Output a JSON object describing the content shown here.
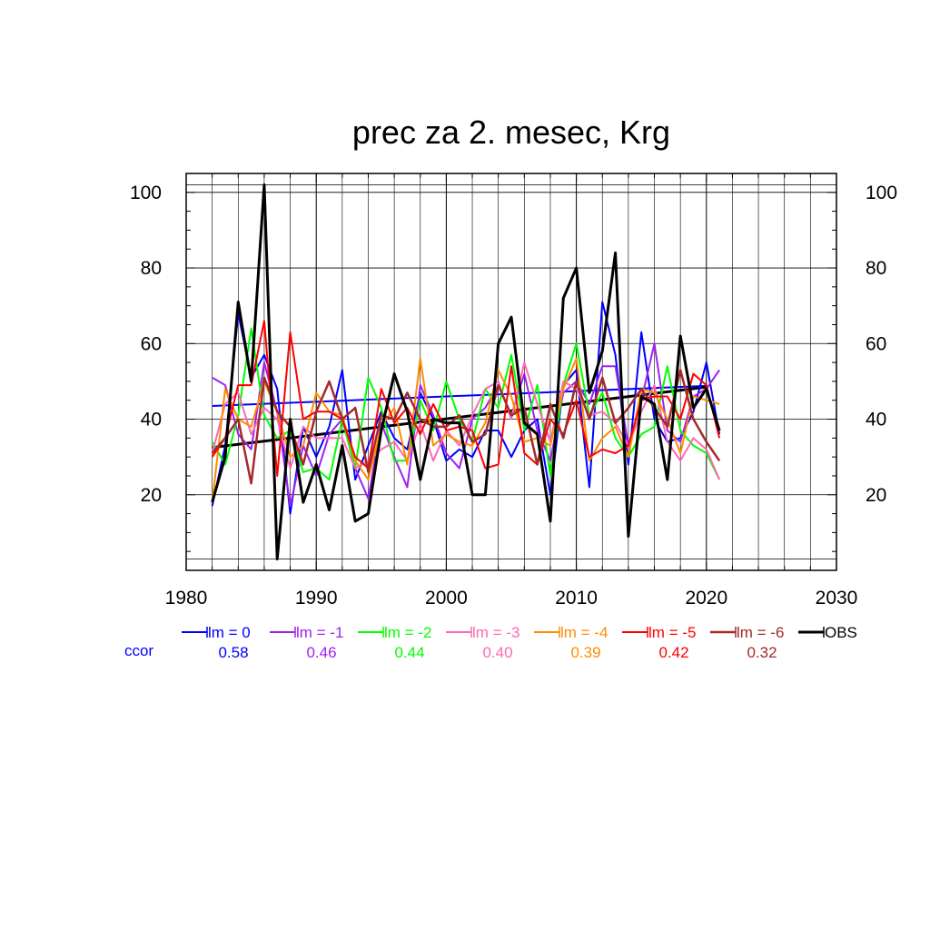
{
  "chart_data": {
    "type": "line",
    "title": "prec za 2. mesec, Krg",
    "xlim": [
      1980,
      2030
    ],
    "ylim": [
      0,
      105
    ],
    "x_ticks": [
      1980,
      1990,
      2000,
      2010,
      2020,
      2030
    ],
    "y_ticks": [
      20,
      40,
      60,
      80,
      100
    ],
    "grid": true,
    "legend_position": "bottom",
    "ccor_label": "ccor",
    "years": [
      1982,
      1983,
      1984,
      1985,
      1986,
      1987,
      1988,
      1989,
      1990,
      1991,
      1992,
      1993,
      1994,
      1995,
      1996,
      1997,
      1998,
      1999,
      2000,
      2001,
      2002,
      2003,
      2004,
      2005,
      2006,
      2007,
      2008,
      2009,
      2010,
      2011,
      2012,
      2013,
      2014,
      2015,
      2016,
      2017,
      2018,
      2019,
      2020,
      2021
    ],
    "series": [
      {
        "name": "lm = 0",
        "ccor": "0.58",
        "color": "#0000ff",
        "width": 2,
        "values": [
          17,
          33,
          68,
          51,
          57,
          48,
          15,
          38,
          30,
          38,
          53,
          24,
          33,
          42,
          35,
          32,
          47,
          40,
          29,
          32,
          30,
          37,
          37,
          30,
          37,
          40,
          20,
          49,
          53,
          22,
          71,
          57,
          28,
          63,
          40,
          34,
          35,
          42,
          55,
          36
        ],
        "trend": [
          43.5,
          48.8
        ]
      },
      {
        "name": "lm = -1",
        "ccor": "0.46",
        "color": "#a020f0",
        "width": 2,
        "values": [
          51,
          49,
          36,
          32,
          55,
          42,
          17,
          33,
          25,
          36,
          40,
          27,
          19,
          39,
          30,
          22,
          49,
          41,
          31,
          27,
          40,
          43,
          49,
          41,
          52,
          37,
          29,
          47,
          50,
          44,
          54,
          54,
          33,
          45,
          60,
          37,
          34,
          46,
          48,
          53
        ]
      },
      {
        "name": "lm = -2",
        "ccor": "0.44",
        "color": "#00ff00",
        "width": 2,
        "values": [
          34,
          28,
          41,
          64,
          41,
          35,
          37,
          26,
          27,
          24,
          40,
          27,
          51,
          43,
          29,
          29,
          45,
          37,
          50,
          40,
          34,
          48,
          43,
          57,
          37,
          49,
          25,
          49,
          60,
          41,
          47,
          35,
          30,
          36,
          38,
          54,
          37,
          33,
          31,
          24
        ]
      },
      {
        "name": "lm = -3",
        "ccor": "0.40",
        "color": "#ff69b4",
        "width": 2,
        "values": [
          31,
          44,
          47,
          36,
          43,
          40,
          27,
          38,
          35,
          35,
          35,
          27,
          29,
          32,
          34,
          29,
          39,
          29,
          37,
          33,
          41,
          48,
          50,
          40,
          55,
          44,
          34,
          50,
          48,
          41,
          42,
          39,
          33,
          42,
          49,
          34,
          29,
          35,
          32,
          24
        ]
      },
      {
        "name": "lm = -4",
        "ccor": "0.39",
        "color": "#ff8c00",
        "width": 2,
        "values": [
          18,
          48,
          40,
          38,
          50,
          42,
          30,
          33,
          47,
          42,
          41,
          29,
          24,
          38,
          43,
          28,
          56,
          33,
          36,
          34,
          33,
          39,
          53,
          46,
          34,
          35,
          33,
          48,
          56,
          29,
          35,
          38,
          30,
          48,
          47,
          40,
          31,
          46,
          45,
          44
        ]
      },
      {
        "name": "lm = -5",
        "ccor": "0.42",
        "color": "#ff0000",
        "width": 2,
        "values": [
          30,
          35,
          49,
          49,
          66,
          25,
          63,
          40,
          42,
          42,
          40,
          30,
          27,
          48,
          39,
          43,
          36,
          44,
          37,
          38,
          37,
          27,
          28,
          54,
          31,
          28,
          40,
          36,
          45,
          30,
          32,
          31,
          33,
          45,
          46,
          46,
          40,
          52,
          49,
          35
        ]
      },
      {
        "name": "lm = -6",
        "ccor": "0.32",
        "color": "#a52a2a",
        "width": 2.5,
        "values": [
          31,
          35,
          40,
          23,
          51,
          42,
          38,
          28,
          42,
          50,
          40,
          43,
          26,
          41,
          40,
          47,
          40,
          38,
          38,
          41,
          34,
          36,
          49,
          41,
          43,
          28,
          44,
          35,
          50,
          40,
          51,
          39,
          43,
          48,
          43,
          38,
          53,
          40,
          34,
          29
        ]
      },
      {
        "name": "OBS",
        "ccor": "",
        "color": "#000000",
        "width": 3,
        "values": [
          18,
          30,
          71,
          50,
          102,
          3,
          40,
          18,
          28,
          16,
          33,
          13,
          15,
          37,
          52,
          42,
          24,
          40,
          39,
          39,
          20,
          20,
          60,
          67,
          39,
          36,
          13,
          72,
          80,
          47,
          58,
          84,
          9,
          46,
          44,
          24,
          62,
          43,
          48,
          37
        ],
        "trend": [
          32.5,
          48.5
        ]
      }
    ]
  }
}
